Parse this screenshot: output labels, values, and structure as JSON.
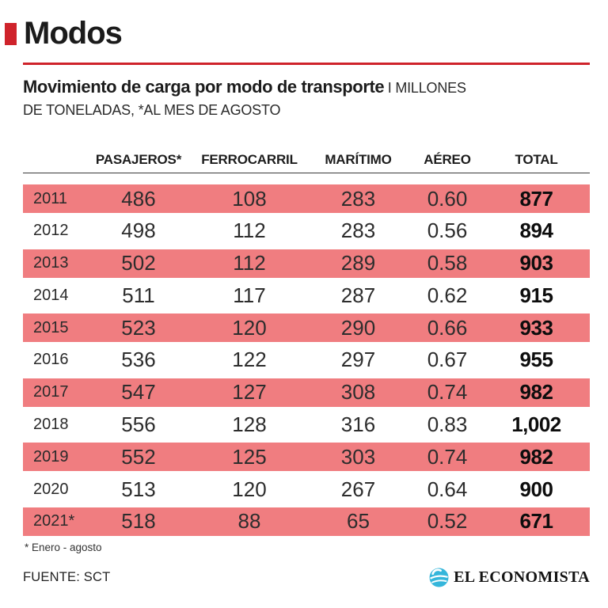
{
  "colors": {
    "accent_red": "#CF232B",
    "row_pink": "#F07D80",
    "logo_cyan": "#35B6DB"
  },
  "header": {
    "title": "Modos"
  },
  "subtitle": {
    "title": "Movimiento de carga por modo de transporte",
    "unit_first": "I MILLONES",
    "unit_second": "DE TONELADAS, *AL MES DE AGOSTO"
  },
  "table": {
    "columns": [
      "PASAJEROS*",
      "FERROCARRIL",
      "MARÍTIMO",
      "AÉREO",
      "TOTAL"
    ],
    "rows": [
      {
        "year": "2011",
        "values": [
          "486",
          "108",
          "283",
          "0.60",
          "877"
        ],
        "highlight": true
      },
      {
        "year": "2012",
        "values": [
          "498",
          "112",
          "283",
          "0.56",
          "894"
        ],
        "highlight": false
      },
      {
        "year": "2013",
        "values": [
          "502",
          "112",
          "289",
          "0.58",
          "903"
        ],
        "highlight": true
      },
      {
        "year": "2014",
        "values": [
          "511",
          "117",
          "287",
          "0.62",
          "915"
        ],
        "highlight": false
      },
      {
        "year": "2015",
        "values": [
          "523",
          "120",
          "290",
          "0.66",
          "933"
        ],
        "highlight": true
      },
      {
        "year": "2016",
        "values": [
          "536",
          "122",
          "297",
          "0.67",
          "955"
        ],
        "highlight": false
      },
      {
        "year": "2017",
        "values": [
          "547",
          "127",
          "308",
          "0.74",
          "982"
        ],
        "highlight": true
      },
      {
        "year": "2018",
        "values": [
          "556",
          "128",
          "316",
          "0.83",
          "1,002"
        ],
        "highlight": false
      },
      {
        "year": "2019",
        "values": [
          "552",
          "125",
          "303",
          "0.74",
          "982"
        ],
        "highlight": true
      },
      {
        "year": "2020",
        "values": [
          "513",
          "120",
          "267",
          "0.64",
          "900"
        ],
        "highlight": false
      },
      {
        "year": "2021*",
        "values": [
          "518",
          "88",
          "65",
          "0.52",
          "671"
        ],
        "highlight": true
      }
    ]
  },
  "footnote": "* Enero - agosto",
  "source": "FUENTE: SCT",
  "logo_text": "EL ECONOMISTA",
  "chart_data": {
    "type": "table",
    "title": "Modos",
    "subtitle": "Movimiento de carga por modo de transporte I MILLONES DE TONELADAS, *AL MES DE AGOSTO",
    "categories": [
      "2011",
      "2012",
      "2013",
      "2014",
      "2015",
      "2016",
      "2017",
      "2018",
      "2019",
      "2020",
      "2021*"
    ],
    "series": [
      {
        "name": "PASAJEROS*",
        "values": [
          486,
          498,
          502,
          511,
          523,
          536,
          547,
          556,
          552,
          513,
          518
        ]
      },
      {
        "name": "FERROCARRIL",
        "values": [
          108,
          112,
          112,
          117,
          120,
          122,
          127,
          128,
          125,
          120,
          88
        ]
      },
      {
        "name": "MARÍTIMO",
        "values": [
          283,
          283,
          289,
          287,
          290,
          297,
          308,
          316,
          303,
          267,
          65
        ]
      },
      {
        "name": "AÉREO",
        "values": [
          0.6,
          0.56,
          0.58,
          0.62,
          0.66,
          0.67,
          0.74,
          0.83,
          0.74,
          0.64,
          0.52
        ]
      },
      {
        "name": "TOTAL",
        "values": [
          877,
          894,
          903,
          915,
          933,
          955,
          982,
          1002,
          982,
          900,
          671
        ]
      }
    ],
    "footnote": "* Enero - agosto",
    "source": "FUENTE: SCT",
    "layout": {
      "highlighted_rows": "odd years shaded pink",
      "grid": "header underline only"
    }
  }
}
